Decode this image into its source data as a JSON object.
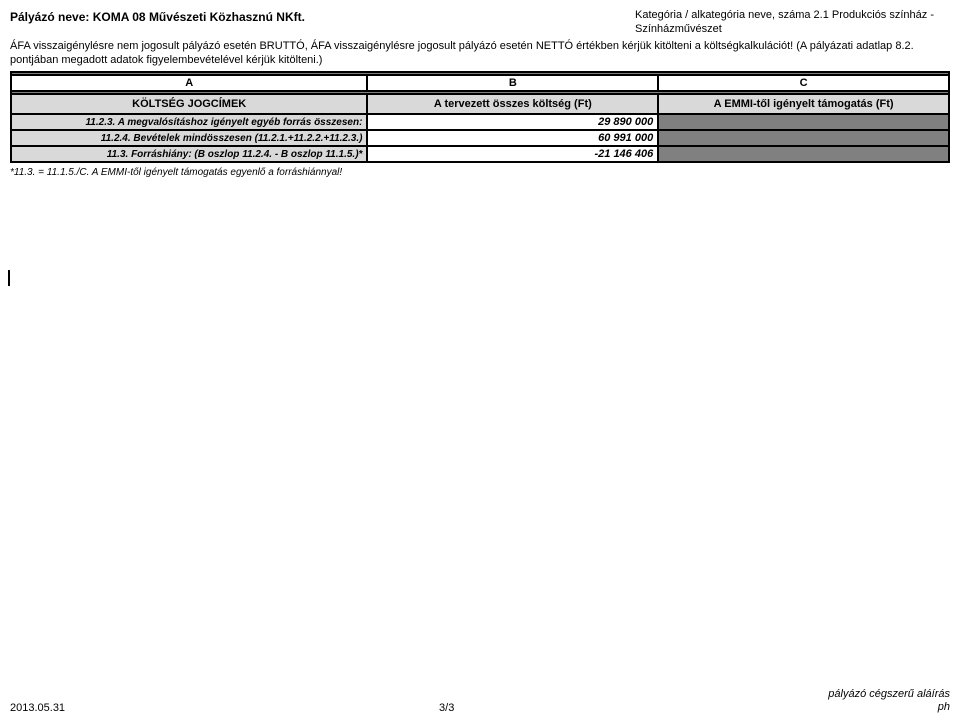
{
  "header": {
    "applicant_name": "Pályázó neve: KOMA 08 Művészeti Közhasznú NKft.",
    "category_line": "Kategória / alkategória neve, száma 2.1 Produkciós színház - Színházművészet"
  },
  "afa_text": "ÁFA visszaigénylésre nem jogosult pályázó esetén BRUTTÓ, ÁFA visszaigénylésre jogosult pályázó esetén NETTÓ értékben kérjük kitölteni a költségkalkulációt! (A pályázati adatlap 8.2. pontjában megadott adatok figyelembevételével kérjük kitölteni.)",
  "columns": {
    "a": "A",
    "b": "B",
    "c": "C",
    "a_head": "KÖLTSÉG JOGCÍMEK",
    "b_head": "A tervezett összes költség (Ft)",
    "c_head": "A EMMI-től igényelt támogatás (Ft)"
  },
  "rows": [
    {
      "label": "11.2.3. A megvalósításhoz igényelt egyéb forrás összesen:",
      "b": "29 890 000",
      "c_gray": true
    },
    {
      "label": "11.2.4. Bevételek mindösszesen (11.2.1.+11.2.2.+11.2.3.)",
      "b": "60 991 000",
      "c_gray": true
    },
    {
      "label": "11.3. Forráshiány: (B oszlop 11.2.4. - B oszlop 11.1.5.)*",
      "b": "-21 146 406",
      "c_gray": true
    }
  ],
  "footnote": "*11.3. = 11.1.5./C. A EMMI-től igényelt támogatás egyenlő a forráshiánnyal!",
  "footer": {
    "date": "2013.05.31",
    "page": "3/3",
    "sign1": "pályázó cégszerű aláírás",
    "sign2": "ph"
  },
  "layout": {
    "col_a_width": "38%",
    "col_b_width": "31%",
    "col_c_width": "31%"
  }
}
